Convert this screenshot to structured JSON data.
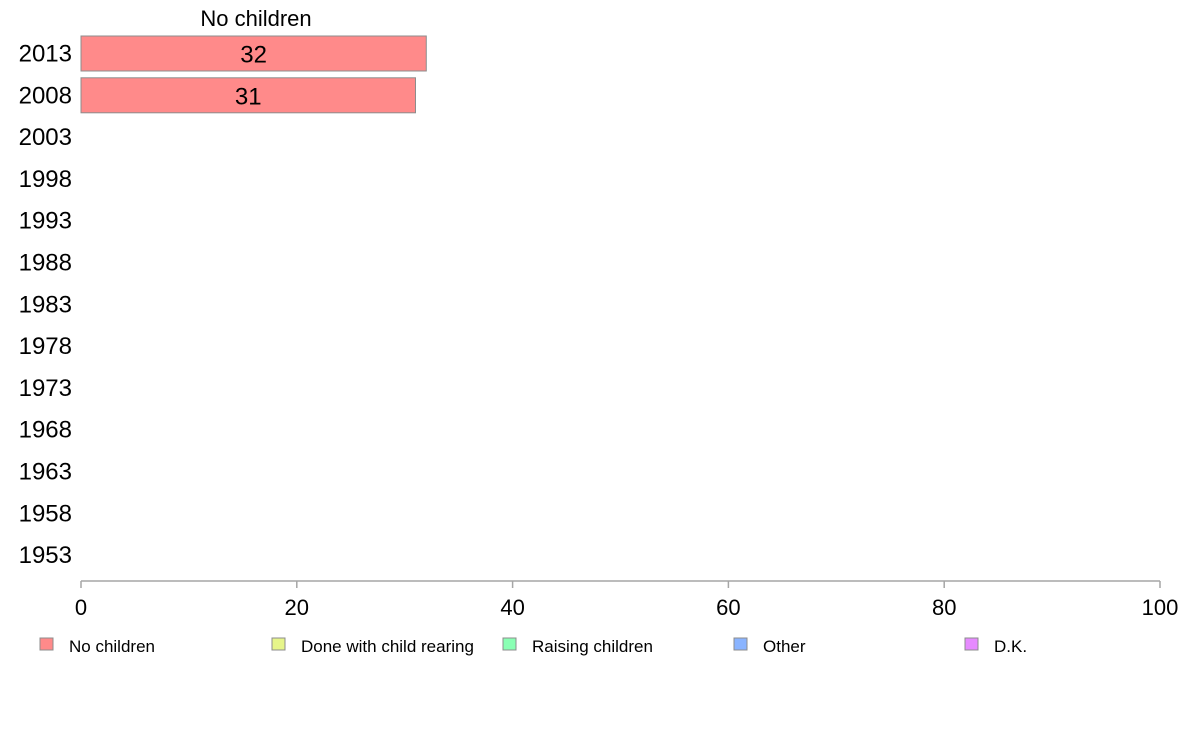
{
  "chart_data": {
    "type": "bar",
    "orientation": "horizontal",
    "stacked": true,
    "categories": [
      "2013",
      "2008",
      "2003",
      "1998",
      "1993",
      "1988",
      "1983",
      "1978",
      "1973",
      "1968",
      "1963",
      "1958",
      "1953"
    ],
    "series": [
      {
        "name": "No children",
        "color": "#ff8a8a",
        "values": [
          32,
          31,
          null,
          null,
          null,
          null,
          null,
          null,
          null,
          null,
          null,
          null,
          null
        ]
      },
      {
        "name": "Done with child rearing",
        "color": "#e6f58a",
        "values": [
          null,
          null,
          null,
          null,
          null,
          null,
          null,
          null,
          null,
          null,
          null,
          null,
          null
        ]
      },
      {
        "name": "Raising children",
        "color": "#8affb4",
        "values": [
          null,
          null,
          null,
          null,
          null,
          null,
          null,
          null,
          null,
          null,
          null,
          null,
          null
        ]
      },
      {
        "name": "Other",
        "color": "#8ab4ff",
        "values": [
          null,
          null,
          null,
          null,
          null,
          null,
          null,
          null,
          null,
          null,
          null,
          null,
          null
        ]
      },
      {
        "name": "D.K.",
        "color": "#e68aff",
        "values": [
          null,
          null,
          null,
          null,
          null,
          null,
          null,
          null,
          null,
          null,
          null,
          null,
          null
        ]
      }
    ],
    "column_header": "No children",
    "xlim": [
      0,
      100
    ],
    "x_ticks": [
      "0",
      "20",
      "40",
      "60",
      "80",
      "100"
    ],
    "grid": false,
    "legend_position": "bottom"
  }
}
